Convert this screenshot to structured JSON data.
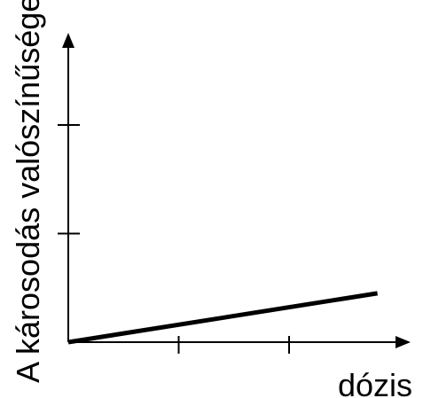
{
  "chart_data": {
    "type": "line",
    "title": "",
    "xlabel": "dózis",
    "ylabel": "A károsodás valószínűsége",
    "grid": false,
    "legend": "none",
    "x_ticks": 2,
    "y_ticks": 2,
    "xlim": [
      0,
      3
    ],
    "ylim": [
      0,
      3
    ],
    "series": [
      {
        "x": [
          0,
          2.8
        ],
        "y": [
          0,
          0.45
        ],
        "color": "#000000"
      }
    ]
  }
}
